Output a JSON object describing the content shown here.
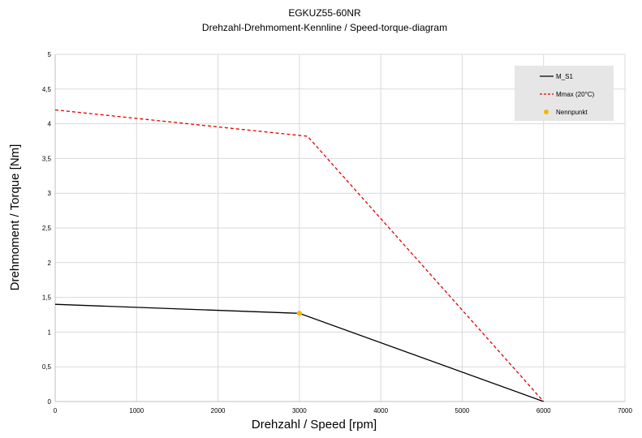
{
  "chart_data": {
    "type": "line",
    "title": "EGKUZ55-60NR",
    "subtitle": "Drehzahl-Drehmoment-Kennline / Speed-torque-diagram",
    "xlabel": "Drehzahl / Speed [rpm]",
    "ylabel": "Drehmoment / Torque [Nm]",
    "xlim": [
      0,
      7000
    ],
    "ylim": [
      0,
      5
    ],
    "x_ticks": [
      "0",
      "1000",
      "2000",
      "3000",
      "4000",
      "5000",
      "6000",
      "7000"
    ],
    "y_ticks": [
      "0",
      "0,5",
      "1",
      "1,5",
      "2",
      "2,5",
      "3",
      "3,5",
      "4",
      "4,5",
      "5"
    ],
    "x_tick_values": [
      0,
      1000,
      2000,
      3000,
      4000,
      5000,
      6000,
      7000
    ],
    "y_tick_values": [
      0,
      0.5,
      1,
      1.5,
      2,
      2.5,
      3,
      3.5,
      4,
      4.5,
      5
    ],
    "grid": true,
    "legend_position": "top-right",
    "series": [
      {
        "name": "M_S1",
        "kind": "line",
        "style": "solid",
        "color": "#000000",
        "points": [
          [
            0,
            1.4
          ],
          [
            3000,
            1.27
          ],
          [
            6000,
            0.0
          ]
        ]
      },
      {
        "name": "Mmax (20°C)",
        "kind": "line",
        "style": "dashed",
        "color": "#e00000",
        "points": [
          [
            0,
            4.2
          ],
          [
            3100,
            3.82
          ],
          [
            6000,
            0.0
          ]
        ]
      },
      {
        "name": "Nennpunkt",
        "kind": "marker",
        "color": "#f5b800",
        "points": [
          [
            3000,
            1.27
          ]
        ]
      }
    ]
  }
}
